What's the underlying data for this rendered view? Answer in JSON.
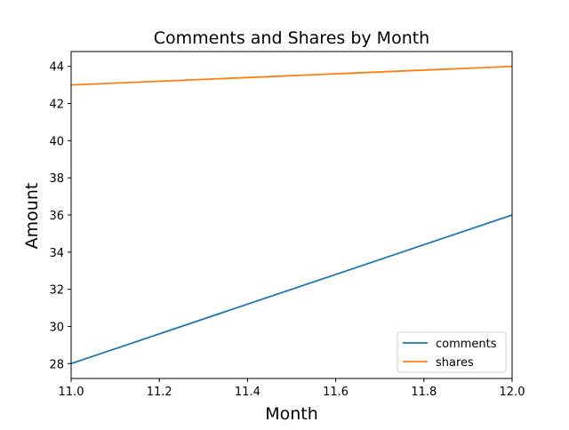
{
  "chart_data": {
    "type": "line",
    "title": "Comments and Shares by Month",
    "xlabel": "Month",
    "ylabel": "Amount",
    "xlim": [
      11.0,
      12.0
    ],
    "ylim": [
      27.2,
      44.8
    ],
    "xticks": [
      "11.0",
      "11.2",
      "11.4",
      "11.6",
      "11.8",
      "12.0"
    ],
    "yticks": [
      "28",
      "30",
      "32",
      "34",
      "36",
      "38",
      "40",
      "42",
      "44"
    ],
    "grid": false,
    "legend_position": "lower-right",
    "series": [
      {
        "name": "comments",
        "color": "#1f77b4",
        "x": [
          11,
          12
        ],
        "y": [
          28,
          36
        ]
      },
      {
        "name": "shares",
        "color": "#ff7f0e",
        "x": [
          11,
          12
        ],
        "y": [
          43,
          44
        ]
      }
    ]
  }
}
